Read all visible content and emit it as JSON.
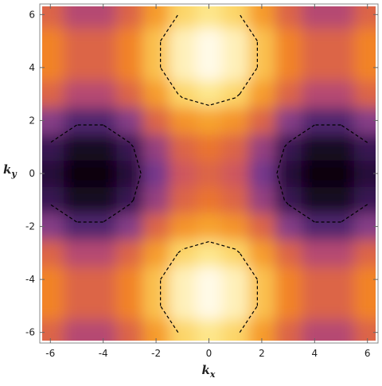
{
  "chart_data": {
    "type": "density",
    "x_label": {
      "base": "k",
      "sub": "x"
    },
    "y_label": {
      "base": "k",
      "sub": "y"
    },
    "xlim": [
      -6.4,
      6.4
    ],
    "ylim": [
      -6.4,
      6.4
    ],
    "xticks": [
      -6,
      -4,
      -2,
      0,
      2,
      4,
      6
    ],
    "yticks": [
      -6,
      -4,
      -2,
      0,
      2,
      4,
      6
    ],
    "x": [
      -6,
      -5,
      -4,
      -3,
      -2,
      -1,
      0,
      1,
      2,
      3,
      4,
      5,
      6
    ],
    "y": [
      -6,
      -5,
      -4,
      -3,
      -2,
      -1,
      0,
      1,
      2,
      3,
      4,
      5,
      6
    ],
    "z": [
      [
        0,
        -0.4,
        -0.4,
        0,
        0.7,
        1.3,
        1.5,
        1.3,
        0.7,
        0,
        -0.4,
        -0.4,
        0
      ],
      [
        0.4,
        0,
        0,
        0.4,
        1.1,
        1.7,
        1.9,
        1.7,
        1.1,
        0.4,
        0,
        0,
        0.4
      ],
      [
        0.4,
        0,
        0,
        0.4,
        1.1,
        1.7,
        1.9,
        1.7,
        1.1,
        0.4,
        0,
        0,
        0.4
      ],
      [
        0,
        -0.4,
        -0.4,
        0,
        0.7,
        1.3,
        1.5,
        1.3,
        0.7,
        0,
        -0.4,
        -0.4,
        0
      ],
      [
        -0.7,
        -1.1,
        -1.1,
        -0.7,
        0,
        0.6,
        0.8,
        0.6,
        0,
        -0.7,
        -1.1,
        -1.1,
        -0.7
      ],
      [
        -1.3,
        -1.7,
        -1.7,
        -1.3,
        -0.6,
        0,
        0.2,
        0,
        -0.6,
        -1.3,
        -1.7,
        -1.7,
        -1.3
      ],
      [
        -1.5,
        -1.9,
        -1.9,
        -1.5,
        -0.8,
        -0.2,
        0,
        -0.2,
        -0.8,
        -1.5,
        -1.9,
        -1.9,
        -1.5
      ],
      [
        -1.3,
        -1.7,
        -1.7,
        -1.3,
        -0.6,
        0,
        0.2,
        0,
        -0.6,
        -1.3,
        -1.7,
        -1.7,
        -1.3
      ],
      [
        -0.7,
        -1.1,
        -1.1,
        -0.7,
        0,
        0.6,
        0.8,
        0.6,
        0,
        -0.7,
        -1.1,
        -1.1,
        -0.7
      ],
      [
        0,
        -0.4,
        -0.4,
        0,
        0.7,
        1.3,
        1.5,
        1.3,
        0.7,
        0,
        -0.4,
        -0.4,
        0
      ],
      [
        0.4,
        0,
        0,
        0.4,
        1.1,
        1.7,
        1.9,
        1.7,
        1.1,
        0.4,
        0,
        0,
        0.4
      ],
      [
        0.4,
        0,
        0,
        0.4,
        1.1,
        1.7,
        1.9,
        1.7,
        1.1,
        0.4,
        0,
        0,
        0.4
      ],
      [
        0,
        -0.4,
        -0.4,
        0,
        0.7,
        1.3,
        1.5,
        1.3,
        0.7,
        0,
        -0.4,
        -0.4,
        0
      ]
    ],
    "zlim": [
      -2,
      2
    ],
    "colormap": [
      "#000000",
      "#2b1040",
      "#6b3490",
      "#c8506a",
      "#f07a22",
      "#f8a830",
      "#fde27a",
      "#ffffff"
    ],
    "contours": [
      -1.2,
      1.2
    ]
  }
}
